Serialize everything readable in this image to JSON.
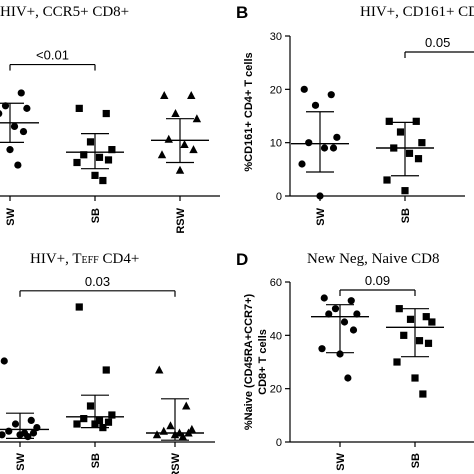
{
  "chart_data": [
    {
      "id": "A",
      "type": "scatter",
      "panel_letter": "",
      "title": "HIV+, CCR5+ CD8+",
      "ylabel": "",
      "ylim": [
        0,
        26
      ],
      "yticks": [],
      "categories": [
        "SW",
        "SB",
        "RSW"
      ],
      "series": [
        {
          "category": "SW",
          "marker": "circle",
          "values": [
            25,
            20,
            17.5,
            17,
            16,
            13.5,
            12.5,
            10,
            9,
            6
          ],
          "mean": 14.2,
          "sd_low": 10.4,
          "sd_high": 18.0
        },
        {
          "category": "SB",
          "marker": "square",
          "values": [
            17,
            16,
            10.5,
            9,
            8,
            7.5,
            7,
            6.5,
            4,
            3
          ],
          "mean": 8.5,
          "sd_low": 5.3,
          "sd_high": 12.1
        },
        {
          "category": "RSW",
          "marker": "triangle",
          "values": [
            19.5,
            19.5,
            16,
            15,
            11,
            10,
            9,
            8,
            5
          ],
          "mean": 10.8,
          "sd_low": 6.5,
          "sd_high": 15.0
        }
      ],
      "comparisons": [
        {
          "from": "SW",
          "to": "SB",
          "label": "<0.01",
          "y": 25.5
        }
      ]
    },
    {
      "id": "B",
      "type": "scatter",
      "panel_letter": "B",
      "title": "HIV+, CD161+ CD",
      "ylabel": "%CD161+ CD4+ T cells",
      "ylim": [
        0,
        30
      ],
      "yticks": [
        0,
        10,
        20,
        30
      ],
      "categories": [
        "SW",
        "SB"
      ],
      "series": [
        {
          "category": "SW",
          "marker": "circle",
          "values": [
            20,
            19,
            17,
            11,
            10,
            9,
            9,
            6,
            0
          ],
          "mean": 9.8,
          "sd_low": 4.5,
          "sd_high": 15.8
        },
        {
          "category": "SB",
          "marker": "square",
          "values": [
            14,
            14,
            12,
            10,
            9,
            8,
            7,
            3,
            1
          ],
          "mean": 9.0,
          "sd_low": 3.8,
          "sd_high": 13.8
        }
      ],
      "comparisons": [
        {
          "from": "SB",
          "to": "",
          "label": "0.05",
          "y": 27
        }
      ]
    },
    {
      "id": "C",
      "type": "scatter",
      "panel_letter": "",
      "title": "HIV+, TEFF CD4+",
      "ylabel": "",
      "ylim": [
        0,
        100
      ],
      "yticks": [],
      "categories": [
        "SW",
        "SB",
        "RSW"
      ],
      "series": [
        {
          "category": "SW",
          "marker": "circle",
          "values": [
            45,
            12,
            10,
            8,
            6,
            5,
            5,
            4,
            4,
            3
          ],
          "mean": 7.0,
          "sd_low": 2.0,
          "sd_high": 16.0
        },
        {
          "category": "SB",
          "marker": "square",
          "values": [
            75,
            40,
            20,
            15,
            13,
            12,
            11,
            10,
            10,
            8
          ],
          "mean": 14.0,
          "sd_low": 8.0,
          "sd_high": 26.0
        },
        {
          "category": "RSW",
          "marker": "triangle",
          "values": [
            40,
            20,
            9,
            7,
            6,
            5,
            5,
            4,
            4,
            3
          ],
          "mean": 5.0,
          "sd_low": 1.0,
          "sd_high": 24.0
        }
      ],
      "comparisons": [
        {
          "from": "SW",
          "to": "RSW",
          "label": "0.03",
          "y": 84
        }
      ]
    },
    {
      "id": "D",
      "type": "scatter",
      "panel_letter": "D",
      "title": "New Neg, Naive CD8",
      "ylabel": "%Naive (CD45RA+CCR7+) CD8+ T cells",
      "ylim": [
        0,
        60
      ],
      "yticks": [
        0,
        20,
        40,
        60
      ],
      "categories": [
        "SW",
        "SB"
      ],
      "series": [
        {
          "category": "SW",
          "marker": "circle",
          "values": [
            54,
            53,
            50,
            48,
            48,
            45,
            42,
            35,
            33,
            24
          ],
          "mean": 47.0,
          "sd_low": 33.5,
          "sd_high": 51.5
        },
        {
          "category": "SB",
          "marker": "square",
          "values": [
            50,
            47,
            46,
            45,
            40,
            38,
            37,
            30,
            24,
            18
          ],
          "mean": 43.0,
          "sd_low": 32.0,
          "sd_high": 50.0
        }
      ],
      "comparisons": [
        {
          "from": "SW",
          "to": "SB",
          "label": "0.09",
          "y": 57
        }
      ]
    }
  ]
}
